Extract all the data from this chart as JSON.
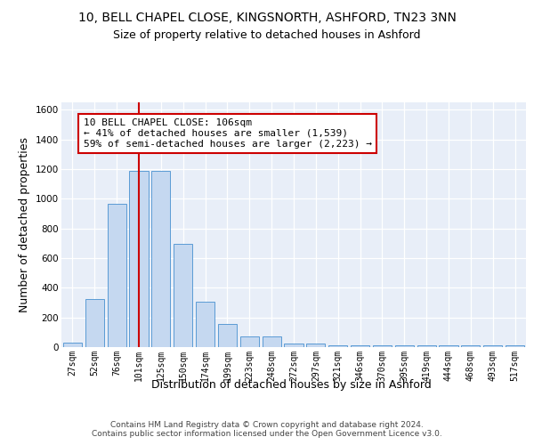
{
  "title": "10, BELL CHAPEL CLOSE, KINGSNORTH, ASHFORD, TN23 3NN",
  "subtitle": "Size of property relative to detached houses in Ashford",
  "xlabel": "Distribution of detached houses by size in Ashford",
  "ylabel": "Number of detached properties",
  "categories": [
    "27sqm",
    "52sqm",
    "76sqm",
    "101sqm",
    "125sqm",
    "150sqm",
    "174sqm",
    "199sqm",
    "223sqm",
    "248sqm",
    "272sqm",
    "297sqm",
    "321sqm",
    "346sqm",
    "370sqm",
    "395sqm",
    "419sqm",
    "444sqm",
    "468sqm",
    "493sqm",
    "517sqm"
  ],
  "values": [
    30,
    325,
    965,
    1190,
    1190,
    695,
    305,
    155,
    75,
    75,
    25,
    25,
    15,
    15,
    10,
    10,
    10,
    10,
    10,
    10,
    10
  ],
  "bar_color": "#c5d8f0",
  "bar_edge_color": "#5b9bd5",
  "redline_index": 3,
  "redline_color": "#cc0000",
  "annotation_text": "10 BELL CHAPEL CLOSE: 106sqm\n← 41% of detached houses are smaller (1,539)\n59% of semi-detached houses are larger (2,223) →",
  "annotation_box_color": "#ffffff",
  "annotation_box_edge": "#cc0000",
  "ylim": [
    0,
    1650
  ],
  "yticks": [
    0,
    200,
    400,
    600,
    800,
    1000,
    1200,
    1400,
    1600
  ],
  "footer": "Contains HM Land Registry data © Crown copyright and database right 2024.\nContains public sector information licensed under the Open Government Licence v3.0.",
  "background_color": "#ffffff",
  "plot_bg_color": "#e8eef8",
  "grid_color": "#ffffff",
  "title_fontsize": 10,
  "subtitle_fontsize": 9,
  "axis_label_fontsize": 9,
  "tick_fontsize": 7,
  "annotation_fontsize": 8,
  "ylabel_fontsize": 9
}
